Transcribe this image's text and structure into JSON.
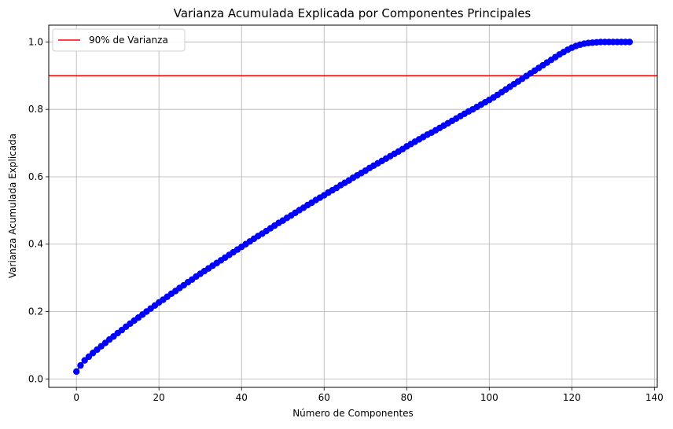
{
  "chart_data": {
    "type": "scatter",
    "title": "Varianza Acumulada Explicada por Componentes Principales",
    "xlabel": "Número de Componentes",
    "ylabel": "Varianza Acumulada Explicada",
    "xlim": [
      -6.7,
      140.7
    ],
    "ylim": [
      -0.025,
      1.05
    ],
    "xticks": [
      0,
      20,
      40,
      60,
      80,
      100,
      120,
      140
    ],
    "yticks": [
      0.0,
      0.2,
      0.4,
      0.6,
      0.8,
      1.0
    ],
    "xtick_labels": [
      "0",
      "20",
      "40",
      "60",
      "80",
      "100",
      "120",
      "140"
    ],
    "ytick_labels": [
      "0.0",
      "0.2",
      "0.4",
      "0.6",
      "0.8",
      "1.0"
    ],
    "grid": true,
    "legend_position": "top-left",
    "series": [
      {
        "kind": "line-markers",
        "color": "#0000ff",
        "x_start": 0,
        "x_end": 134,
        "values": [
          0.022,
          0.04,
          0.055,
          0.066,
          0.077,
          0.087,
          0.097,
          0.107,
          0.117,
          0.126,
          0.136,
          0.145,
          0.155,
          0.164,
          0.173,
          0.182,
          0.191,
          0.2,
          0.209,
          0.218,
          0.227,
          0.235,
          0.244,
          0.253,
          0.261,
          0.27,
          0.278,
          0.287,
          0.295,
          0.304,
          0.312,
          0.32,
          0.328,
          0.336,
          0.344,
          0.352,
          0.36,
          0.368,
          0.376,
          0.384,
          0.392,
          0.4,
          0.408,
          0.416,
          0.424,
          0.431,
          0.439,
          0.447,
          0.455,
          0.463,
          0.47,
          0.478,
          0.485,
          0.493,
          0.501,
          0.508,
          0.516,
          0.523,
          0.531,
          0.538,
          0.545,
          0.553,
          0.56,
          0.567,
          0.575,
          0.582,
          0.589,
          0.597,
          0.604,
          0.611,
          0.618,
          0.626,
          0.633,
          0.64,
          0.647,
          0.654,
          0.661,
          0.668,
          0.675,
          0.682,
          0.69,
          0.697,
          0.704,
          0.711,
          0.718,
          0.725,
          0.731,
          0.738,
          0.745,
          0.752,
          0.759,
          0.766,
          0.773,
          0.78,
          0.787,
          0.794,
          0.8,
          0.807,
          0.814,
          0.821,
          0.828,
          0.835,
          0.843,
          0.851,
          0.859,
          0.867,
          0.875,
          0.883,
          0.891,
          0.899,
          0.907,
          0.915,
          0.923,
          0.931,
          0.939,
          0.947,
          0.955,
          0.963,
          0.97,
          0.977,
          0.983,
          0.988,
          0.992,
          0.995,
          0.997,
          0.998,
          0.999,
          1.0,
          1.0,
          1.0,
          1.0,
          1.0,
          1.0,
          1.0,
          1.0
        ]
      },
      {
        "kind": "hline",
        "name": "90% de Varianza",
        "color": "#ff0000",
        "y": 0.9
      }
    ]
  }
}
